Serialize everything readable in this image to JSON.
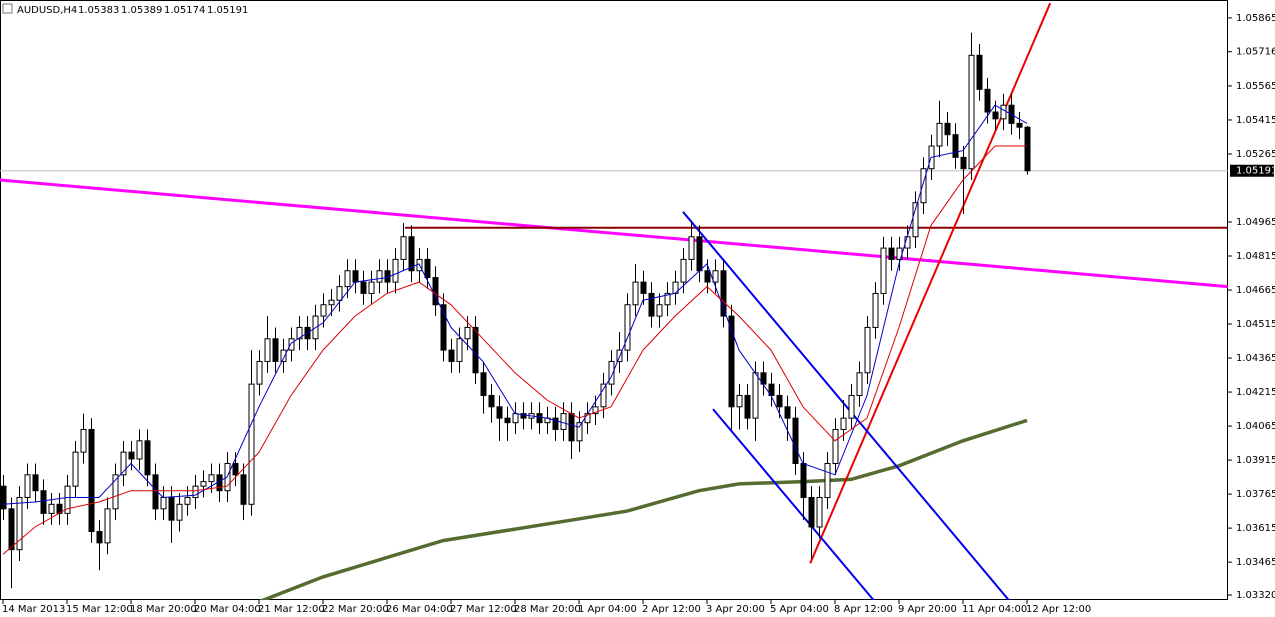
{
  "chart_data": {
    "type": "candlestick",
    "title": "AUDUSD,H4",
    "open": [
      1.038,
      1.037,
      1.0352,
      1.0375,
      1.0385,
      1.0378,
      1.0368,
      1.0372,
      1.0368,
      1.038,
      1.0395,
      1.0405,
      1.036,
      1.0355,
      1.037,
      1.0385,
      1.0395,
      1.0392,
      1.04,
      1.0385,
      1.037,
      1.0375,
      1.0365,
      1.0372,
      1.0375,
      1.038,
      1.0382,
      1.0385,
      1.0378,
      1.039,
      1.0385,
      1.0372,
      1.0425,
      1.0435,
      1.0445,
      1.0435,
      1.044,
      1.0445,
      1.045,
      1.0445,
      1.0455,
      1.046,
      1.0462,
      1.0468,
      1.0475,
      1.047,
      1.0465,
      1.047,
      1.0475,
      1.047,
      1.048,
      1.049,
      1.0475,
      1.048,
      1.0472,
      1.046,
      1.044,
      1.0435,
      1.0445,
      1.045,
      1.043,
      1.042,
      1.0415,
      1.041,
      1.0408,
      1.0412,
      1.041,
      1.0412,
      1.0408,
      1.041,
      1.0405,
      1.0412,
      1.04,
      1.0408,
      1.0412,
      1.0415,
      1.0425,
      1.0435,
      1.044,
      1.046,
      1.047,
      1.0465,
      1.0455,
      1.046,
      1.0465,
      1.047,
      1.048,
      1.049,
      1.0475,
      1.047,
      1.0475,
      1.0455,
      1.0415,
      1.042,
      1.041,
      1.043,
      1.0425,
      1.042,
      1.0415,
      1.041,
      1.039,
      1.0375,
      1.0362,
      1.0375,
      1.039,
      1.0405,
      1.041,
      1.042,
      1.043,
      1.045,
      1.0465,
      1.0485,
      1.048,
      1.0485,
      1.049,
      1.0505,
      1.052,
      1.053,
      1.054,
      1.0535,
      1.0525,
      1.052,
      1.057,
      1.0555,
      1.0545,
      1.0542,
      1.0548,
      1.054,
      1.05383
    ],
    "high": [
      1.0385,
      1.0375,
      1.038,
      1.039,
      1.039,
      1.0383,
      1.0377,
      1.0377,
      1.0385,
      1.04,
      1.0412,
      1.041,
      1.0365,
      1.0375,
      1.039,
      1.04,
      1.04,
      1.0405,
      1.0405,
      1.039,
      1.038,
      1.038,
      1.0377,
      1.038,
      1.0385,
      1.0387,
      1.039,
      1.039,
      1.0395,
      1.0395,
      1.039,
      1.044,
      1.044,
      1.0455,
      1.045,
      1.0445,
      1.045,
      1.0455,
      1.0455,
      1.046,
      1.0465,
      1.0467,
      1.0473,
      1.048,
      1.048,
      1.0475,
      1.0475,
      1.048,
      1.048,
      1.0485,
      1.0496,
      1.0495,
      1.0485,
      1.0485,
      1.0477,
      1.0465,
      1.0445,
      1.045,
      1.0455,
      1.0455,
      1.0435,
      1.0425,
      1.042,
      1.0415,
      1.0417,
      1.0417,
      1.0417,
      1.0417,
      1.0415,
      1.0415,
      1.0417,
      1.0417,
      1.0413,
      1.0417,
      1.042,
      1.043,
      1.044,
      1.0448,
      1.0465,
      1.0478,
      1.0475,
      1.047,
      1.0465,
      1.047,
      1.0475,
      1.0485,
      1.0497,
      1.0495,
      1.048,
      1.048,
      1.048,
      1.046,
      1.0425,
      1.0425,
      1.0435,
      1.0435,
      1.043,
      1.0425,
      1.042,
      1.0415,
      1.0395,
      1.038,
      1.038,
      1.0395,
      1.041,
      1.0418,
      1.0425,
      1.0435,
      1.0455,
      1.047,
      1.049,
      1.049,
      1.049,
      1.0495,
      1.051,
      1.0525,
      1.0535,
      1.055,
      1.0545,
      1.054,
      1.053,
      1.058,
      1.0575,
      1.056,
      1.055,
      1.0553,
      1.0553,
      1.0545,
      1.05389
    ],
    "low": [
      1.0365,
      1.0335,
      1.0347,
      1.037,
      1.0373,
      1.0363,
      1.0363,
      1.0363,
      1.0363,
      1.0375,
      1.039,
      1.0355,
      1.0343,
      1.035,
      1.0365,
      1.038,
      1.0387,
      1.0387,
      1.038,
      1.0365,
      1.0365,
      1.0355,
      1.036,
      1.0367,
      1.037,
      1.0375,
      1.0377,
      1.0373,
      1.0373,
      1.038,
      1.0365,
      1.0367,
      1.042,
      1.043,
      1.043,
      1.043,
      1.0435,
      1.044,
      1.044,
      1.044,
      1.045,
      1.0455,
      1.0457,
      1.0463,
      1.0465,
      1.046,
      1.046,
      1.0465,
      1.0465,
      1.0465,
      1.0475,
      1.047,
      1.047,
      1.0467,
      1.0455,
      1.0435,
      1.043,
      1.043,
      1.044,
      1.0425,
      1.0412,
      1.0408,
      1.04,
      1.04,
      1.0403,
      1.0405,
      1.0405,
      1.0403,
      1.0403,
      1.04,
      1.04,
      1.0392,
      1.0395,
      1.0403,
      1.0407,
      1.041,
      1.042,
      1.043,
      1.0435,
      1.0455,
      1.046,
      1.045,
      1.045,
      1.0455,
      1.046,
      1.0465,
      1.0475,
      1.047,
      1.0465,
      1.0465,
      1.045,
      1.0405,
      1.0405,
      1.0405,
      1.04,
      1.042,
      1.0415,
      1.041,
      1.04,
      1.0385,
      1.0365,
      1.0348,
      1.0357,
      1.037,
      1.0385,
      1.04,
      1.0405,
      1.0415,
      1.0425,
      1.0445,
      1.046,
      1.0475,
      1.0475,
      1.048,
      1.0485,
      1.05,
      1.0515,
      1.0525,
      1.053,
      1.052,
      1.05,
      1.0515,
      1.055,
      1.054,
      1.0537,
      1.0537,
      1.0535,
      1.0533,
      1.05174
    ],
    "close": [
      1.037,
      1.0352,
      1.0375,
      1.0385,
      1.0378,
      1.0368,
      1.0372,
      1.0368,
      1.038,
      1.0395,
      1.0405,
      1.036,
      1.0355,
      1.037,
      1.0385,
      1.0395,
      1.0392,
      1.04,
      1.0385,
      1.037,
      1.0375,
      1.0365,
      1.0372,
      1.0375,
      1.038,
      1.0382,
      1.0385,
      1.0378,
      1.039,
      1.0385,
      1.0372,
      1.0425,
      1.0435,
      1.0445,
      1.0435,
      1.044,
      1.0445,
      1.045,
      1.0445,
      1.0455,
      1.046,
      1.0462,
      1.0468,
      1.0475,
      1.047,
      1.0465,
      1.047,
      1.0475,
      1.047,
      1.048,
      1.049,
      1.0475,
      1.048,
      1.0472,
      1.046,
      1.044,
      1.0435,
      1.0445,
      1.045,
      1.043,
      1.042,
      1.0415,
      1.041,
      1.0408,
      1.0412,
      1.041,
      1.0412,
      1.0408,
      1.041,
      1.0405,
      1.0412,
      1.04,
      1.0408,
      1.0412,
      1.0415,
      1.0425,
      1.0435,
      1.044,
      1.046,
      1.047,
      1.0465,
      1.0455,
      1.046,
      1.0465,
      1.047,
      1.048,
      1.049,
      1.0475,
      1.047,
      1.0475,
      1.0455,
      1.0415,
      1.042,
      1.041,
      1.043,
      1.0425,
      1.042,
      1.0415,
      1.041,
      1.039,
      1.0375,
      1.0362,
      1.0375,
      1.039,
      1.0405,
      1.041,
      1.042,
      1.043,
      1.045,
      1.0465,
      1.0485,
      1.048,
      1.0485,
      1.049,
      1.0505,
      1.052,
      1.053,
      1.054,
      1.0535,
      1.0525,
      1.052,
      1.057,
      1.0555,
      1.0545,
      1.0542,
      1.0548,
      1.054,
      1.05383,
      1.05191
    ],
    "ylim": [
      1.03298,
      1.05944
    ],
    "yticks": [
      1.05865,
      1.05716,
      1.05565,
      1.05415,
      1.05265,
      1.04965,
      1.04815,
      1.04665,
      1.04515,
      1.04365,
      1.04215,
      1.04065,
      1.03915,
      1.03765,
      1.03615,
      1.03465,
      {
        "value": 1.0332,
        "label": "1.03320"
      }
    ],
    "xticks": [
      {
        "value": 0,
        "label": "14 Mar 2013"
      },
      {
        "value": 8,
        "label": "15 Mar 12:00"
      },
      {
        "value": 16,
        "label": "18 Mar 20:00"
      },
      {
        "value": 24,
        "label": "20 Mar 04:00"
      },
      {
        "value": 32,
        "label": "21 Mar 12:00"
      },
      {
        "value": 40,
        "label": "22 Mar 20:00"
      },
      {
        "value": 48,
        "label": "26 Mar 04:00"
      },
      {
        "value": 56,
        "label": "27 Mar 12:00"
      },
      {
        "value": 64,
        "label": "28 Mar 20:00"
      },
      {
        "value": 72,
        "label": "1 Apr 04:00"
      },
      {
        "value": 80,
        "label": "2 Apr 12:00"
      },
      {
        "value": 88,
        "label": "3 Apr 20:00"
      },
      {
        "value": 96,
        "label": "5 Apr 04:00"
      },
      {
        "value": 104,
        "label": "8 Apr 12:00"
      },
      {
        "value": 112,
        "label": "9 Apr 20:00"
      },
      {
        "value": 120,
        "label": "11 Apr 04:00"
      },
      {
        "value": 128,
        "label": "12 Apr 12:00"
      }
    ],
    "indicators": [
      {
        "color": "#0000cc",
        "x": [
          0,
          4,
          8,
          12,
          16,
          20,
          24,
          28,
          32,
          36,
          40,
          44,
          48,
          52,
          56,
          60,
          64,
          68,
          72,
          76,
          80,
          84,
          88,
          92,
          96,
          100,
          104,
          108,
          112,
          116,
          120,
          124,
          128
        ],
        "values": [
          1.0372,
          1.0373,
          1.0375,
          1.0375,
          1.039,
          1.0375,
          1.0376,
          1.0384,
          1.0415,
          1.0443,
          1.0452,
          1.047,
          1.0472,
          1.0478,
          1.045,
          1.0435,
          1.0412,
          1.041,
          1.0406,
          1.0428,
          1.0462,
          1.0465,
          1.0478,
          1.044,
          1.042,
          1.039,
          1.0385,
          1.042,
          1.0478,
          1.0525,
          1.0528,
          1.0548,
          1.054
        ]
      },
      {
        "color": "#dd0000",
        "x": [
          0,
          4,
          8,
          12,
          16,
          20,
          24,
          28,
          32,
          36,
          40,
          44,
          48,
          52,
          56,
          60,
          64,
          68,
          72,
          76,
          80,
          84,
          88,
          92,
          96,
          100,
          104,
          108,
          112,
          116,
          120,
          124,
          128
        ],
        "values": [
          1.035,
          1.0362,
          1.037,
          1.0373,
          1.0378,
          1.0378,
          1.0378,
          1.038,
          1.0395,
          1.042,
          1.044,
          1.0455,
          1.0465,
          1.047,
          1.046,
          1.0445,
          1.043,
          1.0418,
          1.041,
          1.0415,
          1.044,
          1.0455,
          1.0468,
          1.0455,
          1.044,
          1.0415,
          1.04,
          1.041,
          1.045,
          1.0495,
          1.0515,
          1.053,
          1.053
        ]
      },
      {
        "color": "#556b2f",
        "x": [
          32,
          40,
          55,
          71,
          78,
          87,
          92,
          100,
          106,
          112,
          120,
          128
        ],
        "values": [
          1.0329,
          1.034,
          1.0356,
          1.0365,
          1.0369,
          1.0378,
          1.0381,
          1.0382,
          1.0383,
          1.0389,
          1.04,
          1.0409
        ]
      }
    ],
    "trendlines": [
      {
        "color": "#ff00ff",
        "x": [
          -0.4,
          153.1
        ],
        "values": [
          1.0515,
          1.0468
        ]
      },
      {
        "color": "#8b0000",
        "x": [
          50.25,
          153.1
        ],
        "values": [
          1.0494,
          1.0494
        ]
      },
      {
        "color": "#ee0000",
        "x": [
          100.9,
          130.9
        ],
        "values": [
          1.0346,
          1.0593
        ]
      },
      {
        "color": "#0000ee",
        "x": [
          85,
          125.9
        ],
        "values": [
          1.0501,
          1.0329
        ]
      },
      {
        "color": "#0000ee",
        "x": [
          88.75,
          109
        ],
        "values": [
          1.0414,
          1.0329
        ]
      }
    ]
  }
}
